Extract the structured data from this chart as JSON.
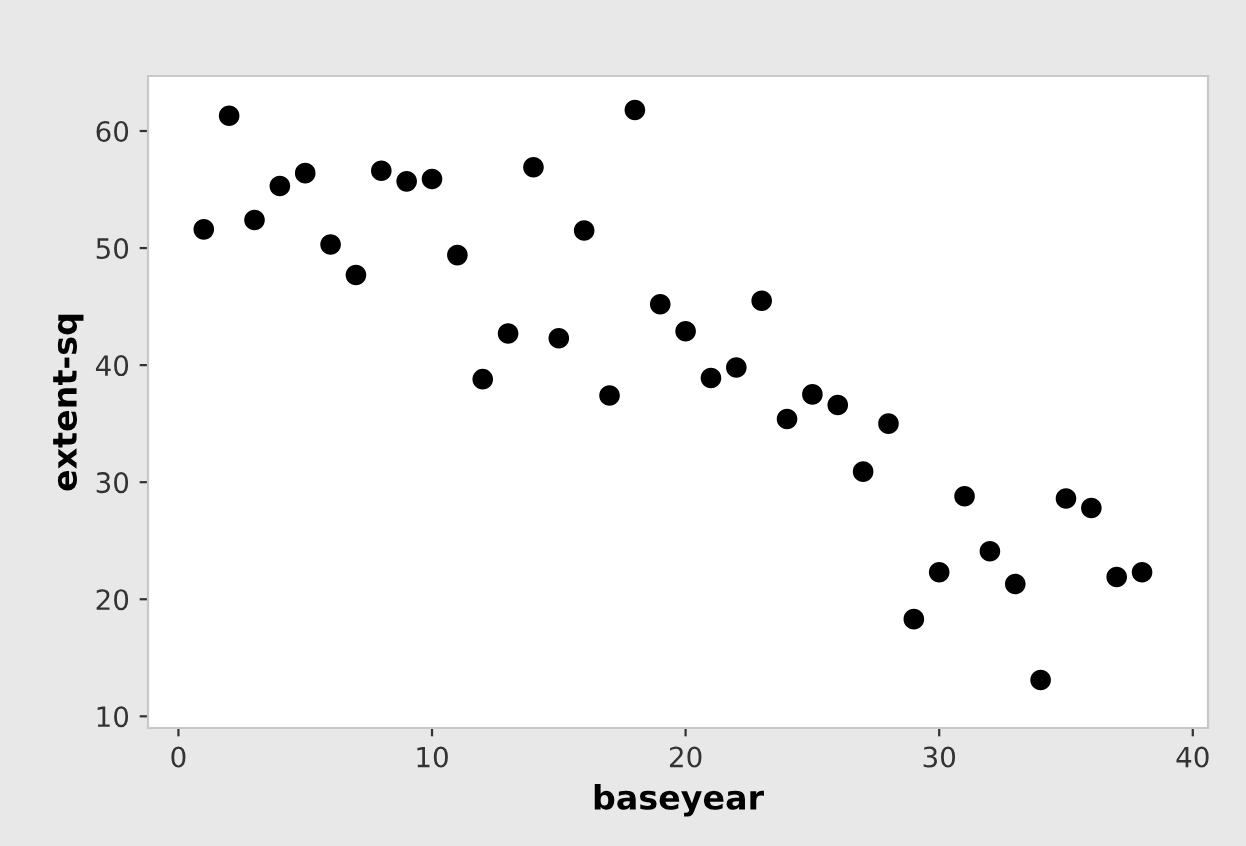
{
  "chart_data": {
    "type": "scatter",
    "xlabel": "baseyear",
    "ylabel": "extent-sq",
    "x": [
      1,
      2,
      3,
      4,
      5,
      6,
      7,
      8,
      9,
      10,
      11,
      12,
      13,
      14,
      15,
      16,
      17,
      18,
      19,
      20,
      21,
      22,
      23,
      24,
      25,
      26,
      27,
      28,
      29,
      30,
      31,
      32,
      33,
      34,
      35,
      36,
      37,
      38
    ],
    "values": [
      51.6,
      61.3,
      52.4,
      55.3,
      56.4,
      50.3,
      47.7,
      56.6,
      55.7,
      55.9,
      49.4,
      38.8,
      42.7,
      56.9,
      42.3,
      51.5,
      37.4,
      61.8,
      45.2,
      42.9,
      38.9,
      39.8,
      45.5,
      35.4,
      37.5,
      36.6,
      30.9,
      35.0,
      18.3,
      22.3,
      28.8,
      24.1,
      21.3,
      13.1,
      28.6,
      27.8,
      21.9,
      22.3
    ],
    "color": "#000000",
    "marker": "circle",
    "xlim": [
      -1.2,
      40.6
    ],
    "ylim": [
      9.0,
      64.7
    ],
    "xticks": [
      0,
      10,
      20,
      30,
      40
    ],
    "yticks": [
      10,
      20,
      30,
      40,
      50,
      60
    ],
    "grid": false
  }
}
